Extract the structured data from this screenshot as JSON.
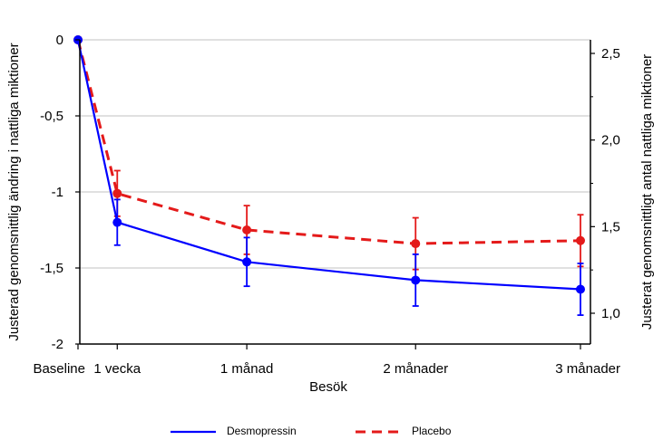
{
  "chart_data": {
    "type": "line",
    "xlabel": "Besök",
    "ylabel_left": "Justerad genomsnittlig ändring i nattliga miktioner",
    "ylabel_right": "Justerat genomsnittligt antal nattliga miktioner",
    "categories": [
      {
        "label": "Baseline",
        "t": 0
      },
      {
        "label": "1 vecka",
        "t": 1
      },
      {
        "label": "1 månad",
        "t": 4.3
      },
      {
        "label": "2 månader",
        "t": 8.6
      },
      {
        "label": "3 månader",
        "t": 12.8
      }
    ],
    "ylim_left": [
      -2,
      0
    ],
    "yticks_left": [
      {
        "value": 0,
        "label": "0"
      },
      {
        "value": -0.5,
        "label": "-0,5"
      },
      {
        "value": -1,
        "label": "-1"
      },
      {
        "value": -1.5,
        "label": "-1,5"
      },
      {
        "value": -2,
        "label": "-2"
      }
    ],
    "ylim_right": [
      0.85,
      2.6
    ],
    "yticks_right": [
      {
        "value": 2.5,
        "label": "2,5"
      },
      {
        "value": 2.0,
        "label": "2,0"
      },
      {
        "value": 1.5,
        "label": "1,5"
      },
      {
        "value": 1.0,
        "label": "1,0"
      }
    ],
    "grid": true,
    "series": [
      {
        "name": "Desmopressin",
        "color": "#0000ff",
        "dash": "solid",
        "values": [
          0,
          -1.2,
          -1.46,
          -1.58,
          -1.64
        ],
        "err": [
          0,
          0.15,
          0.16,
          0.17,
          0.17
        ]
      },
      {
        "name": "Placebo",
        "color": "#e41a1a",
        "dash": "dashed",
        "values": [
          0,
          -1.01,
          -1.25,
          -1.34,
          -1.32
        ],
        "err": [
          0,
          0.15,
          0.16,
          0.17,
          0.17
        ]
      }
    ],
    "legend": "bottom"
  }
}
